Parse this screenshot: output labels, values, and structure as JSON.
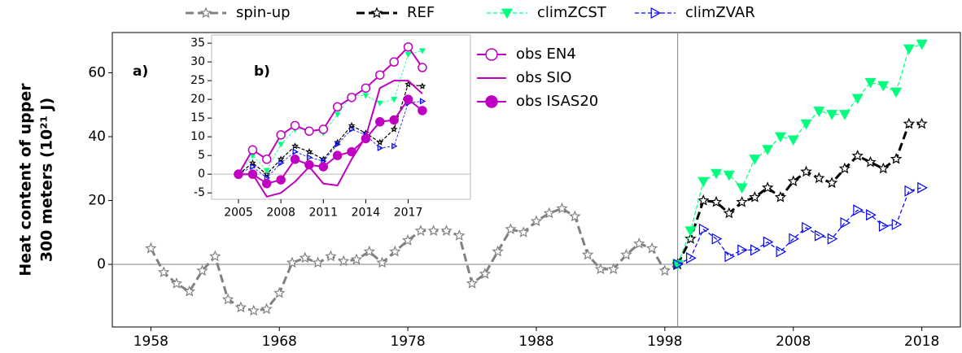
{
  "chart_data": [
    {
      "type": "line",
      "panel_label": "a)",
      "ylabel": [
        "Heat content of upper",
        "300 meters (10²¹ J)"
      ],
      "x": [
        1958,
        1959,
        1960,
        1961,
        1962,
        1963,
        1964,
        1965,
        1966,
        1967,
        1968,
        1969,
        1970,
        1971,
        1972,
        1973,
        1974,
        1975,
        1976,
        1977,
        1978,
        1979,
        1980,
        1981,
        1982,
        1983,
        1984,
        1985,
        1986,
        1987,
        1988,
        1989,
        1990,
        1991,
        1992,
        1993,
        1994,
        1995,
        1996,
        1997,
        1998,
        1999,
        2000,
        2001,
        2002,
        2003,
        2004,
        2005,
        2006,
        2007,
        2008,
        2009,
        2010,
        2011,
        2012,
        2013,
        2014,
        2015,
        2016,
        2017,
        2018
      ],
      "series": [
        {
          "name": "spin-up",
          "color": "#808080",
          "values": [
            5,
            -2.5,
            -6,
            -8.5,
            -2,
            2.5,
            -11,
            -13.5,
            -14.5,
            -14,
            -9,
            0.5,
            2,
            0.5,
            2.5,
            1,
            1.5,
            4,
            0.5,
            4,
            7.5,
            10.5,
            10.5,
            10.5,
            9,
            -6,
            -3,
            4,
            11,
            10,
            13.5,
            16,
            17.5,
            15,
            3,
            -1.5,
            -1.5,
            3,
            6.5,
            5,
            -2,
            0,
            null,
            null,
            null,
            null,
            null,
            null,
            null,
            null,
            null,
            null,
            null,
            null,
            null,
            null,
            null,
            null,
            null,
            null,
            null
          ]
        },
        {
          "name": "REF",
          "color": "#000000",
          "values": [
            null,
            null,
            null,
            null,
            null,
            null,
            null,
            null,
            null,
            null,
            null,
            null,
            null,
            null,
            null,
            null,
            null,
            null,
            null,
            null,
            null,
            null,
            null,
            null,
            null,
            null,
            null,
            null,
            null,
            null,
            null,
            null,
            null,
            null,
            null,
            null,
            null,
            null,
            null,
            null,
            null,
            0,
            8,
            20,
            19.5,
            16,
            19.5,
            21,
            24,
            21,
            26,
            29,
            27,
            25.5,
            30,
            34,
            32,
            30,
            33,
            44,
            44
          ]
        },
        {
          "name": "climZCST",
          "color": "#00ff7f",
          "values": [
            null,
            null,
            null,
            null,
            null,
            null,
            null,
            null,
            null,
            null,
            null,
            null,
            null,
            null,
            null,
            null,
            null,
            null,
            null,
            null,
            null,
            null,
            null,
            null,
            null,
            null,
            null,
            null,
            null,
            null,
            null,
            null,
            null,
            null,
            null,
            null,
            null,
            null,
            null,
            null,
            null,
            0,
            10.5,
            26,
            28.5,
            28,
            24,
            33,
            36,
            40,
            39,
            44,
            48,
            47,
            47,
            52,
            57,
            56,
            54,
            67.5,
            69
          ]
        },
        {
          "name": "climZVAR",
          "color": "#0000ff",
          "values": [
            null,
            null,
            null,
            null,
            null,
            null,
            null,
            null,
            null,
            null,
            null,
            null,
            null,
            null,
            null,
            null,
            null,
            null,
            null,
            null,
            null,
            null,
            null,
            null,
            null,
            null,
            null,
            null,
            null,
            null,
            null,
            null,
            null,
            null,
            null,
            null,
            null,
            null,
            null,
            null,
            null,
            0,
            2,
            11,
            8,
            2.5,
            4.5,
            4.5,
            7,
            4,
            8,
            11.5,
            9,
            8,
            13,
            17,
            15.5,
            12,
            12.5,
            23,
            24
          ]
        }
      ],
      "xlim": [
        1955,
        2021
      ],
      "ylim": [
        -19.6,
        72.6
      ],
      "xticks": [
        1958,
        1968,
        1978,
        1988,
        1998,
        2008,
        2018
      ],
      "yticks": [
        0,
        20,
        40,
        60
      ],
      "vlines": [
        1999
      ],
      "hlines": [
        0
      ]
    },
    {
      "type": "line",
      "panel_label": "b)",
      "x": [
        2005,
        2006,
        2007,
        2008,
        2009,
        2010,
        2011,
        2012,
        2013,
        2014,
        2015,
        2016,
        2017,
        2018
      ],
      "series": [
        {
          "color": "#000000",
          "values": [
            0,
            3,
            0,
            4,
            7.5,
            6,
            4,
            8.5,
            13,
            11,
            8.5,
            12,
            24,
            23.5
          ]
        },
        {
          "color": "#00ff7f",
          "values": [
            0,
            5,
            1,
            8,
            12,
            12,
            11,
            16,
            21,
            21,
            19,
            20,
            32,
            33
          ]
        },
        {
          "color": "#0000ff",
          "values": [
            0,
            2,
            -1,
            3,
            6,
            4.5,
            3.5,
            8,
            12,
            10.5,
            7,
            7.5,
            19,
            19.5
          ]
        },
        {
          "name": "obs EN4",
          "color": "#c000c0",
          "values": [
            0,
            6.5,
            4,
            10.5,
            13,
            11.5,
            12,
            18,
            20.5,
            23,
            26.5,
            30,
            34,
            28.5
          ]
        },
        {
          "name": "obs SIO",
          "color": "#c000c0",
          "values": [
            0,
            0,
            -6,
            -5,
            -2,
            2,
            -2.5,
            -3,
            4,
            10,
            23,
            25,
            25,
            21.5
          ]
        },
        {
          "name": "obs ISAS20",
          "color": "#c000c0",
          "values": [
            0,
            0,
            -2.5,
            -1.5,
            4,
            2.5,
            2,
            5,
            6,
            9.5,
            14,
            14.5,
            20,
            17
          ]
        }
      ],
      "xlim": [
        2003.1,
        2021.4
      ],
      "ylim": [
        -6.7,
        37.2
      ],
      "xticks": [
        2005,
        2008,
        2011,
        2014,
        2017
      ],
      "yticks": [
        -5,
        0,
        5,
        10,
        15,
        20,
        25,
        30,
        35
      ],
      "hlines": [
        0
      ]
    }
  ]
}
